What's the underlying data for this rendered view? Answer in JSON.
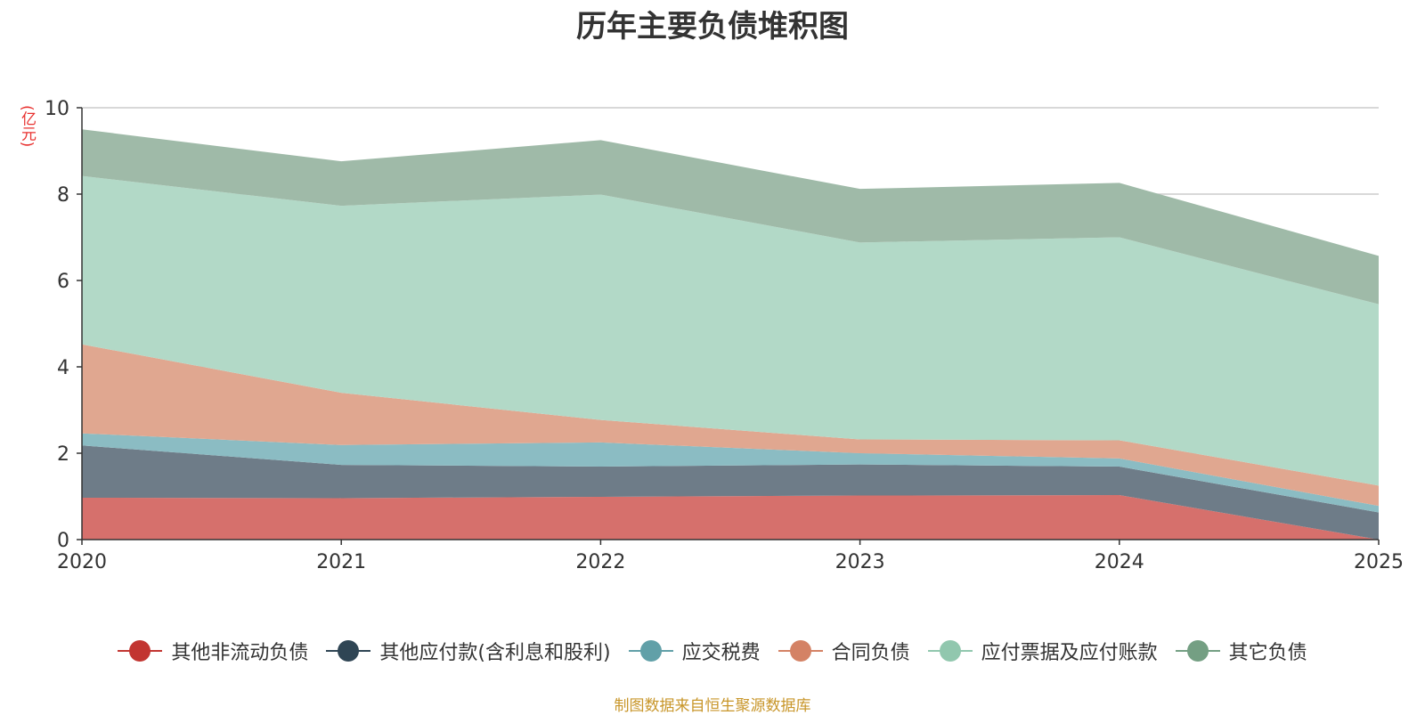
{
  "chart_data": {
    "type": "area",
    "stacked": true,
    "title": "历年主要负债堆积图",
    "ylabel": "(亿元)",
    "xlabel": "",
    "categories": [
      "2020",
      "2021",
      "2022",
      "2023",
      "2024",
      "2025"
    ],
    "ylim": [
      0,
      10
    ],
    "yticks": [
      0,
      2,
      4,
      6,
      8,
      10
    ],
    "grid": true,
    "legend_position": "bottom",
    "series": [
      {
        "name": "其他非流动负债",
        "color": "#c23531",
        "fill": "#d6706c",
        "values": [
          0.97,
          0.96,
          0.99,
          1.02,
          1.03,
          0.0
        ]
      },
      {
        "name": "其他应付款(含利息和股利)",
        "color": "#2f4554",
        "fill": "#6e7c88",
        "values": [
          1.21,
          0.77,
          0.7,
          0.72,
          0.66,
          0.63
        ]
      },
      {
        "name": "应交税费",
        "color": "#61a0a8",
        "fill": "#8bbcc3",
        "values": [
          0.28,
          0.46,
          0.56,
          0.26,
          0.19,
          0.15
        ]
      },
      {
        "name": "合同负债",
        "color": "#d48265",
        "fill": "#e0a790",
        "values": [
          2.06,
          1.21,
          0.52,
          0.32,
          0.42,
          0.47
        ]
      },
      {
        "name": "应付票据及应付账款",
        "color": "#91c7ae",
        "fill": "#b2d9c7",
        "values": [
          3.9,
          4.33,
          5.22,
          4.56,
          4.7,
          4.2
        ]
      },
      {
        "name": "其它负债",
        "color": "#749f83",
        "fill": "#9fbaa8",
        "values": [
          1.08,
          1.03,
          1.26,
          1.24,
          1.26,
          1.12
        ]
      }
    ]
  },
  "source_note": "制图数据来自恒生聚源数据库"
}
